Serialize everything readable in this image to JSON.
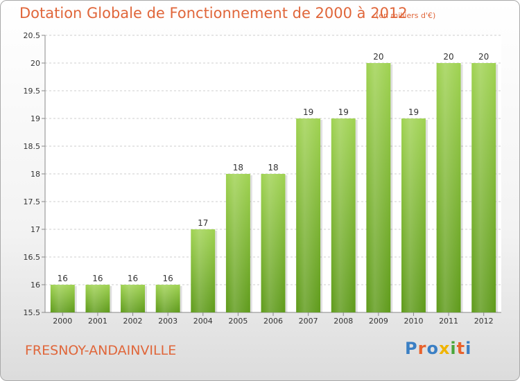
{
  "header": {
    "title": "Dotation Globale de Fonctionnement de 2000 à 2012",
    "subtitle": "(en milliers d'€)"
  },
  "footer": {
    "commune": "FRESNOY-ANDAINVILLE",
    "logo_text": "Proxiti",
    "logo_colors": [
      "#3a7fc4",
      "#e8622c",
      "#3a7fc4",
      "#f0b400",
      "#4aa63a",
      "#e8622c",
      "#3a7fc4"
    ]
  },
  "chart_data": {
    "type": "bar",
    "categories": [
      "2000",
      "2001",
      "2002",
      "2003",
      "2004",
      "2005",
      "2006",
      "2007",
      "2008",
      "2009",
      "2010",
      "2011",
      "2012"
    ],
    "values": [
      16,
      16,
      16,
      16,
      17,
      18,
      18,
      19,
      19,
      20,
      19,
      20,
      20
    ],
    "data_labels": [
      "16",
      "16",
      "16",
      "16",
      "17",
      "18",
      "18",
      "19",
      "19",
      "20",
      "19",
      "20",
      "20"
    ],
    "ylim": [
      15.5,
      20.5
    ],
    "yticks": [
      15.5,
      16,
      16.5,
      17,
      17.5,
      18,
      18.5,
      19,
      19.5,
      20,
      20.5
    ],
    "ytick_labels": [
      "15.5",
      "16",
      "16.5",
      "17",
      "17.5",
      "18",
      "18.5",
      "19",
      "19.5",
      "20",
      "20.5"
    ],
    "grid": true,
    "bar_color": "#8cc63f"
  }
}
